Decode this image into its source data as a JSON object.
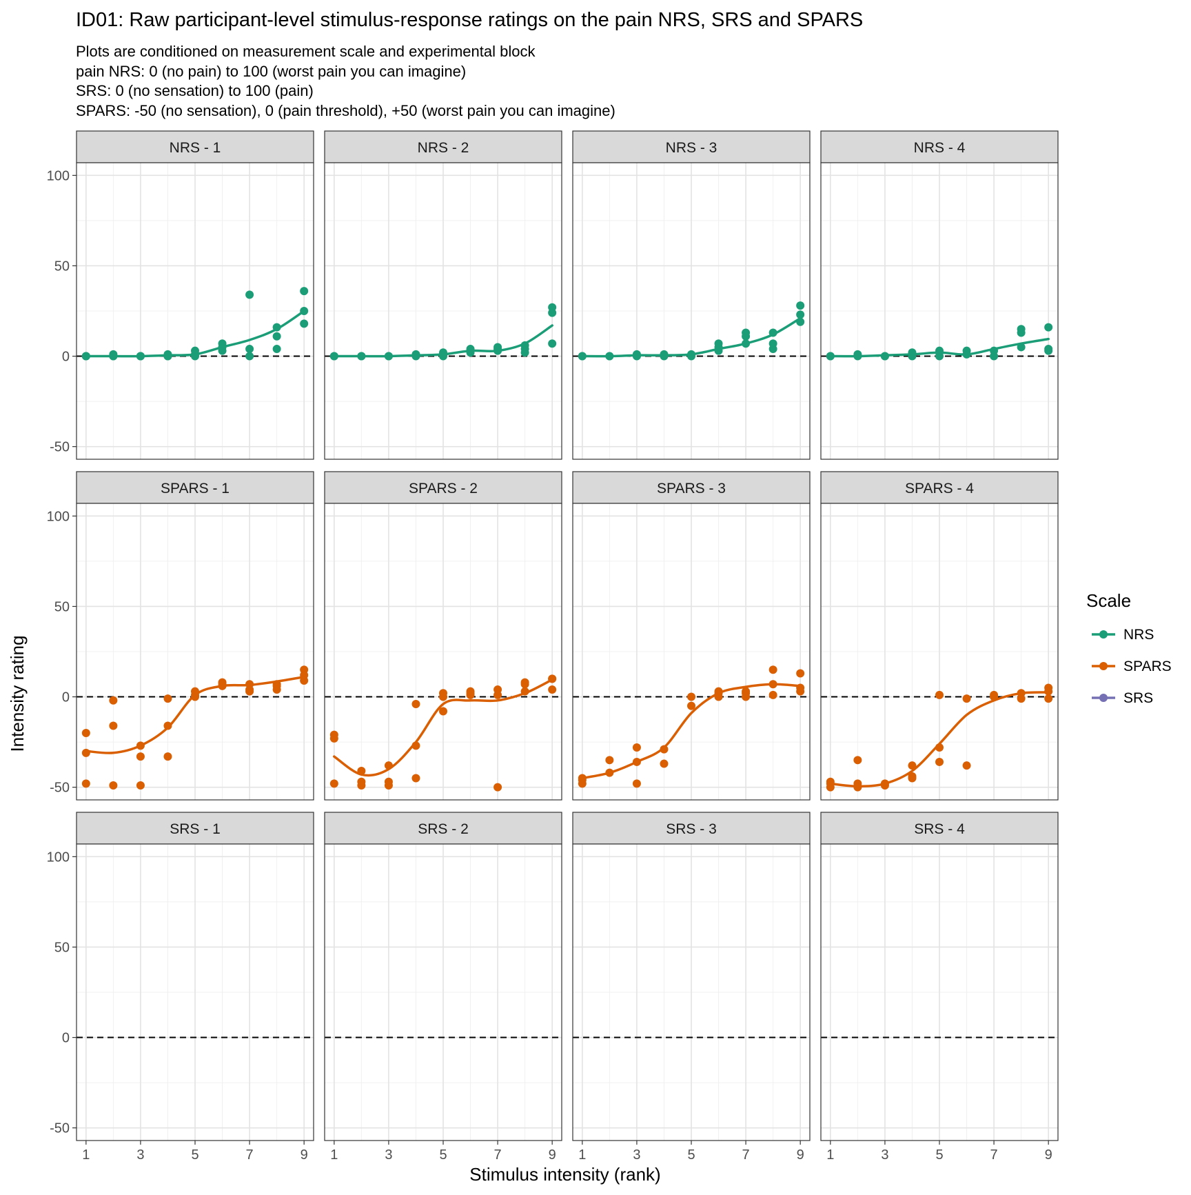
{
  "chart_data": {
    "type": "scatter",
    "title": "ID01: Raw participant-level stimulus-response ratings on the pain NRS, SRS and SPARS",
    "subtitle": [
      "Plots are conditioned on measurement scale and experimental block",
      "pain NRS: 0 (no pain) to 100 (worst pain you can imagine)",
      "SRS: 0 (no sensation) to 100 (pain)",
      "SPARS: -50 (no sensation), 0 (pain threshold), +50 (worst pain you can imagine)"
    ],
    "xlabel": "Stimulus intensity (rank)",
    "ylabel": "Intensity rating",
    "xlim": [
      0.65,
      9.35
    ],
    "ylim": [
      -57,
      107
    ],
    "x_ticks": [
      1,
      3,
      5,
      7,
      9
    ],
    "y_ticks": [
      -50,
      0,
      50,
      100
    ],
    "reference_line_y": 0,
    "grid": true,
    "legend": {
      "title": "Scale",
      "position": "right",
      "entries": [
        {
          "label": "NRS",
          "color": "#1b9e77"
        },
        {
          "label": "SPARS",
          "color": "#d95f02"
        },
        {
          "label": "SRS",
          "color": "#7570b3"
        }
      ]
    },
    "panels": [
      {
        "label": "NRS - 1",
        "scale": "NRS",
        "block": 1,
        "points": [
          [
            1,
            0
          ],
          [
            1,
            0
          ],
          [
            1,
            0
          ],
          [
            2,
            0
          ],
          [
            2,
            1
          ],
          [
            2,
            0
          ],
          [
            3,
            0
          ],
          [
            3,
            0
          ],
          [
            3,
            0
          ],
          [
            4,
            0
          ],
          [
            4,
            1
          ],
          [
            4,
            0
          ],
          [
            5,
            0
          ],
          [
            5,
            3
          ],
          [
            5,
            1
          ],
          [
            6,
            7
          ],
          [
            6,
            3
          ],
          [
            6,
            5
          ],
          [
            7,
            34
          ],
          [
            7,
            4
          ],
          [
            7,
            0
          ],
          [
            8,
            16
          ],
          [
            8,
            11
          ],
          [
            8,
            4
          ],
          [
            9,
            36
          ],
          [
            9,
            25
          ],
          [
            9,
            18
          ]
        ],
        "smooth": [
          [
            1,
            0
          ],
          [
            2,
            0
          ],
          [
            3,
            0
          ],
          [
            4,
            0.5
          ],
          [
            5,
            1
          ],
          [
            6,
            5
          ],
          [
            7,
            9
          ],
          [
            8,
            15
          ],
          [
            9,
            25
          ]
        ]
      },
      {
        "label": "NRS - 2",
        "scale": "NRS",
        "block": 2,
        "points": [
          [
            1,
            0
          ],
          [
            1,
            0
          ],
          [
            2,
            0
          ],
          [
            2,
            0
          ],
          [
            3,
            0
          ],
          [
            3,
            0
          ],
          [
            4,
            1
          ],
          [
            4,
            0
          ],
          [
            5,
            2
          ],
          [
            5,
            0
          ],
          [
            5,
            1
          ],
          [
            6,
            4
          ],
          [
            6,
            2
          ],
          [
            6,
            3
          ],
          [
            7,
            5
          ],
          [
            7,
            3
          ],
          [
            7,
            4
          ],
          [
            8,
            6
          ],
          [
            8,
            2
          ],
          [
            8,
            4
          ],
          [
            9,
            27
          ],
          [
            9,
            24
          ],
          [
            9,
            7
          ]
        ],
        "smooth": [
          [
            1,
            0
          ],
          [
            2,
            0
          ],
          [
            3,
            0
          ],
          [
            4,
            0.5
          ],
          [
            5,
            1
          ],
          [
            6,
            3
          ],
          [
            7,
            3
          ],
          [
            8,
            7
          ],
          [
            9,
            17
          ]
        ]
      },
      {
        "label": "NRS - 3",
        "scale": "NRS",
        "block": 3,
        "points": [
          [
            1,
            0
          ],
          [
            1,
            0
          ],
          [
            2,
            0
          ],
          [
            2,
            0
          ],
          [
            3,
            1
          ],
          [
            3,
            0
          ],
          [
            4,
            1
          ],
          [
            4,
            0
          ],
          [
            5,
            1
          ],
          [
            5,
            0
          ],
          [
            6,
            7
          ],
          [
            6,
            3
          ],
          [
            6,
            5
          ],
          [
            7,
            13
          ],
          [
            7,
            11
          ],
          [
            7,
            7
          ],
          [
            8,
            13
          ],
          [
            8,
            7
          ],
          [
            8,
            4
          ],
          [
            9,
            28
          ],
          [
            9,
            23
          ],
          [
            9,
            19
          ]
        ],
        "smooth": [
          [
            1,
            0
          ],
          [
            2,
            0
          ],
          [
            3,
            0.5
          ],
          [
            4,
            0.5
          ],
          [
            5,
            1
          ],
          [
            6,
            4
          ],
          [
            7,
            7
          ],
          [
            8,
            12
          ],
          [
            9,
            21
          ]
        ]
      },
      {
        "label": "NRS - 4",
        "scale": "NRS",
        "block": 4,
        "points": [
          [
            1,
            0
          ],
          [
            1,
            0
          ],
          [
            2,
            0
          ],
          [
            2,
            1
          ],
          [
            3,
            0
          ],
          [
            3,
            0
          ],
          [
            4,
            2
          ],
          [
            4,
            0
          ],
          [
            4,
            1
          ],
          [
            5,
            3
          ],
          [
            5,
            0
          ],
          [
            5,
            2
          ],
          [
            6,
            3
          ],
          [
            6,
            1
          ],
          [
            7,
            3
          ],
          [
            7,
            0
          ],
          [
            8,
            15
          ],
          [
            8,
            13
          ],
          [
            8,
            5
          ],
          [
            9,
            16
          ],
          [
            9,
            4
          ],
          [
            9,
            3
          ]
        ],
        "smooth": [
          [
            1,
            0
          ],
          [
            2,
            0
          ],
          [
            3,
            0.5
          ],
          [
            4,
            1
          ],
          [
            5,
            2
          ],
          [
            6,
            1
          ],
          [
            7,
            4
          ],
          [
            8,
            7
          ],
          [
            9,
            9.5
          ]
        ]
      },
      {
        "label": "SPARS - 1",
        "scale": "SPARS",
        "block": 1,
        "points": [
          [
            1,
            -20
          ],
          [
            1,
            -31
          ],
          [
            1,
            -48
          ],
          [
            2,
            -2
          ],
          [
            2,
            -16
          ],
          [
            2,
            -49
          ],
          [
            3,
            -27
          ],
          [
            3,
            -33
          ],
          [
            3,
            -49
          ],
          [
            4,
            -1
          ],
          [
            4,
            -16
          ],
          [
            4,
            -33
          ],
          [
            5,
            3
          ],
          [
            5,
            1
          ],
          [
            5,
            0
          ],
          [
            6,
            8
          ],
          [
            6,
            6
          ],
          [
            6,
            7
          ],
          [
            7,
            7
          ],
          [
            7,
            4
          ],
          [
            7,
            3
          ],
          [
            8,
            7
          ],
          [
            8,
            4
          ],
          [
            8,
            6
          ],
          [
            9,
            15
          ],
          [
            9,
            9
          ],
          [
            9,
            12
          ]
        ],
        "smooth": [
          [
            1,
            -30
          ],
          [
            2,
            -31
          ],
          [
            3,
            -27
          ],
          [
            4,
            -17
          ],
          [
            5,
            1
          ],
          [
            6,
            6
          ],
          [
            7,
            6.5
          ],
          [
            8,
            8.5
          ],
          [
            9,
            11
          ]
        ]
      },
      {
        "label": "SPARS - 2",
        "scale": "SPARS",
        "block": 2,
        "points": [
          [
            1,
            -21
          ],
          [
            1,
            -23
          ],
          [
            1,
            -48
          ],
          [
            2,
            -41
          ],
          [
            2,
            -47
          ],
          [
            2,
            -49
          ],
          [
            3,
            -38
          ],
          [
            3,
            -47
          ],
          [
            3,
            -49
          ],
          [
            4,
            -4
          ],
          [
            4,
            -27
          ],
          [
            4,
            -45
          ],
          [
            5,
            2
          ],
          [
            5,
            0
          ],
          [
            5,
            -8
          ],
          [
            6,
            3
          ],
          [
            6,
            1
          ],
          [
            6,
            2
          ],
          [
            7,
            4
          ],
          [
            7,
            1
          ],
          [
            7,
            -50
          ],
          [
            8,
            8
          ],
          [
            8,
            7
          ],
          [
            8,
            3
          ],
          [
            9,
            10
          ],
          [
            9,
            4
          ],
          [
            9,
            10
          ]
        ],
        "smooth": [
          [
            1,
            -33
          ],
          [
            2,
            -43
          ],
          [
            3,
            -40
          ],
          [
            4,
            -25
          ],
          [
            5,
            -4
          ],
          [
            6,
            -2
          ],
          [
            7,
            -2
          ],
          [
            8,
            2
          ],
          [
            9,
            9.5
          ]
        ]
      },
      {
        "label": "SPARS - 3",
        "scale": "SPARS",
        "block": 3,
        "points": [
          [
            1,
            -45
          ],
          [
            1,
            -46
          ],
          [
            1,
            -48
          ],
          [
            2,
            -35
          ],
          [
            2,
            -42
          ],
          [
            3,
            -28
          ],
          [
            3,
            -36
          ],
          [
            3,
            -48
          ],
          [
            4,
            -29
          ],
          [
            4,
            -37
          ],
          [
            5,
            0
          ],
          [
            5,
            -5
          ],
          [
            6,
            3
          ],
          [
            6,
            0
          ],
          [
            6,
            2
          ],
          [
            7,
            3
          ],
          [
            7,
            0
          ],
          [
            7,
            2
          ],
          [
            8,
            15
          ],
          [
            8,
            7
          ],
          [
            8,
            1
          ],
          [
            9,
            13
          ],
          [
            9,
            5
          ],
          [
            9,
            3
          ]
        ],
        "smooth": [
          [
            1,
            -45
          ],
          [
            2,
            -42
          ],
          [
            3,
            -36
          ],
          [
            4,
            -28
          ],
          [
            5,
            -9
          ],
          [
            6,
            2
          ],
          [
            7,
            5.5
          ],
          [
            8,
            7
          ],
          [
            9,
            6
          ]
        ]
      },
      {
        "label": "SPARS - 4",
        "scale": "SPARS",
        "block": 4,
        "points": [
          [
            1,
            -47
          ],
          [
            1,
            -48
          ],
          [
            1,
            -50
          ],
          [
            2,
            -35
          ],
          [
            2,
            -48
          ],
          [
            2,
            -50
          ],
          [
            3,
            -48
          ],
          [
            3,
            -49
          ],
          [
            4,
            -38
          ],
          [
            4,
            -44
          ],
          [
            4,
            -45
          ],
          [
            5,
            1
          ],
          [
            5,
            -28
          ],
          [
            5,
            -36
          ],
          [
            6,
            -1
          ],
          [
            6,
            -38
          ],
          [
            7,
            1
          ],
          [
            7,
            0
          ],
          [
            8,
            2
          ],
          [
            8,
            -1
          ],
          [
            9,
            5
          ],
          [
            9,
            3
          ],
          [
            9,
            -1
          ]
        ],
        "smooth": [
          [
            1,
            -48
          ],
          [
            2,
            -49.5
          ],
          [
            3,
            -48
          ],
          [
            4,
            -41
          ],
          [
            5,
            -26
          ],
          [
            6,
            -10
          ],
          [
            7,
            -2
          ],
          [
            8,
            2
          ],
          [
            9,
            2.5
          ]
        ]
      },
      {
        "label": "SRS - 1",
        "scale": "SRS",
        "block": 1,
        "points": [],
        "smooth": []
      },
      {
        "label": "SRS - 2",
        "scale": "SRS",
        "block": 2,
        "points": [],
        "smooth": []
      },
      {
        "label": "SRS - 3",
        "scale": "SRS",
        "block": 3,
        "points": [],
        "smooth": []
      },
      {
        "label": "SRS - 4",
        "scale": "SRS",
        "block": 4,
        "points": [],
        "smooth": []
      }
    ]
  }
}
